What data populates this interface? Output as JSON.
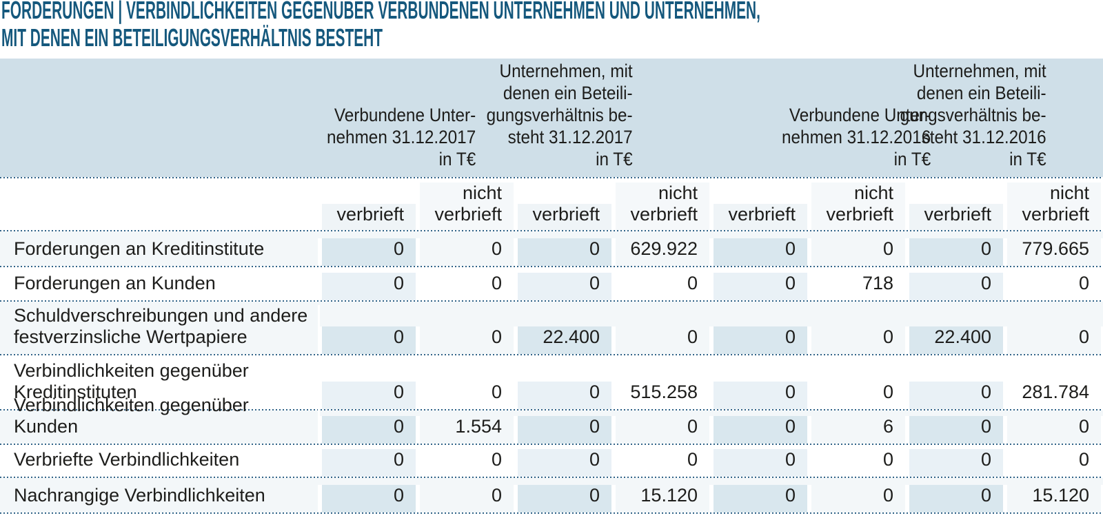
{
  "title": {
    "text": "FORDERUNGEN | VERBINDLICHKEITEN GEGENÜBER VERBUNDENEN UNTERNEHMEN UND UNTERNEHMEN,\nMIT DENEN EIN BETEILIGUNGSVERHÄLTNIS BESTEHT"
  },
  "colors": {
    "title_text": "#15587d",
    "header_band": "#cfdfe8",
    "dotted_rule": "#2f6287",
    "row_tint": "#f3f7f9",
    "stripe_on_tint": "#d9e7ee",
    "stripe_on_white": "#e9f1f6",
    "body_text": "#1d1d1b"
  },
  "table": {
    "group_headers": [
      "Verbundene Unter-\nnehmen 31.12.2017\nin T€",
      "Unternehmen, mit\ndenen ein Beteili-\ngungsverhältnis be-\nsteht 31.12.2017\nin T€",
      "Verbundene Unter-\nnehmen 31.12.2016\nin T€",
      "Unternehmen, mit\ndenen ein Beteili-\ngungsverhältnis be-\nsteht 31.12.2016\nin T€"
    ],
    "sub_headers": [
      "verbrieft",
      "nicht\nverbrieft",
      "verbrieft",
      "nicht\nverbrieft",
      "verbrieft",
      "nicht\nverbrieft",
      "verbrieft",
      "nicht\nverbrieft"
    ],
    "rows": [
      {
        "label": "Forderungen an Kreditinstitute",
        "values": [
          "0",
          "0",
          "0",
          "629.922",
          "0",
          "0",
          "0",
          "779.665"
        ]
      },
      {
        "label": "Forderungen an Kunden",
        "values": [
          "0",
          "0",
          "0",
          "0",
          "0",
          "718",
          "0",
          "0"
        ]
      },
      {
        "label": "Schuldverschreibungen und andere\nfestverzinsliche Wertpapiere",
        "values": [
          "0",
          "0",
          "22.400",
          "0",
          "0",
          "0",
          "22.400",
          "0"
        ]
      },
      {
        "label": "Verbindlichkeiten gegenüber\nKreditinstituten",
        "values": [
          "0",
          "0",
          "0",
          "515.258",
          "0",
          "0",
          "0",
          "281.784"
        ]
      },
      {
        "label": "Verbindlichkeiten gegenüber Kunden",
        "values": [
          "0",
          "1.554",
          "0",
          "0",
          "0",
          "6",
          "0",
          "0"
        ]
      },
      {
        "label": "Verbriefte Verbindlichkeiten",
        "values": [
          "0",
          "0",
          "0",
          "0",
          "0",
          "0",
          "0",
          "0"
        ]
      },
      {
        "label": "Nachrangige Verbindlichkeiten",
        "values": [
          "0",
          "0",
          "0",
          "15.120",
          "0",
          "0",
          "0",
          "15.120"
        ]
      }
    ]
  }
}
